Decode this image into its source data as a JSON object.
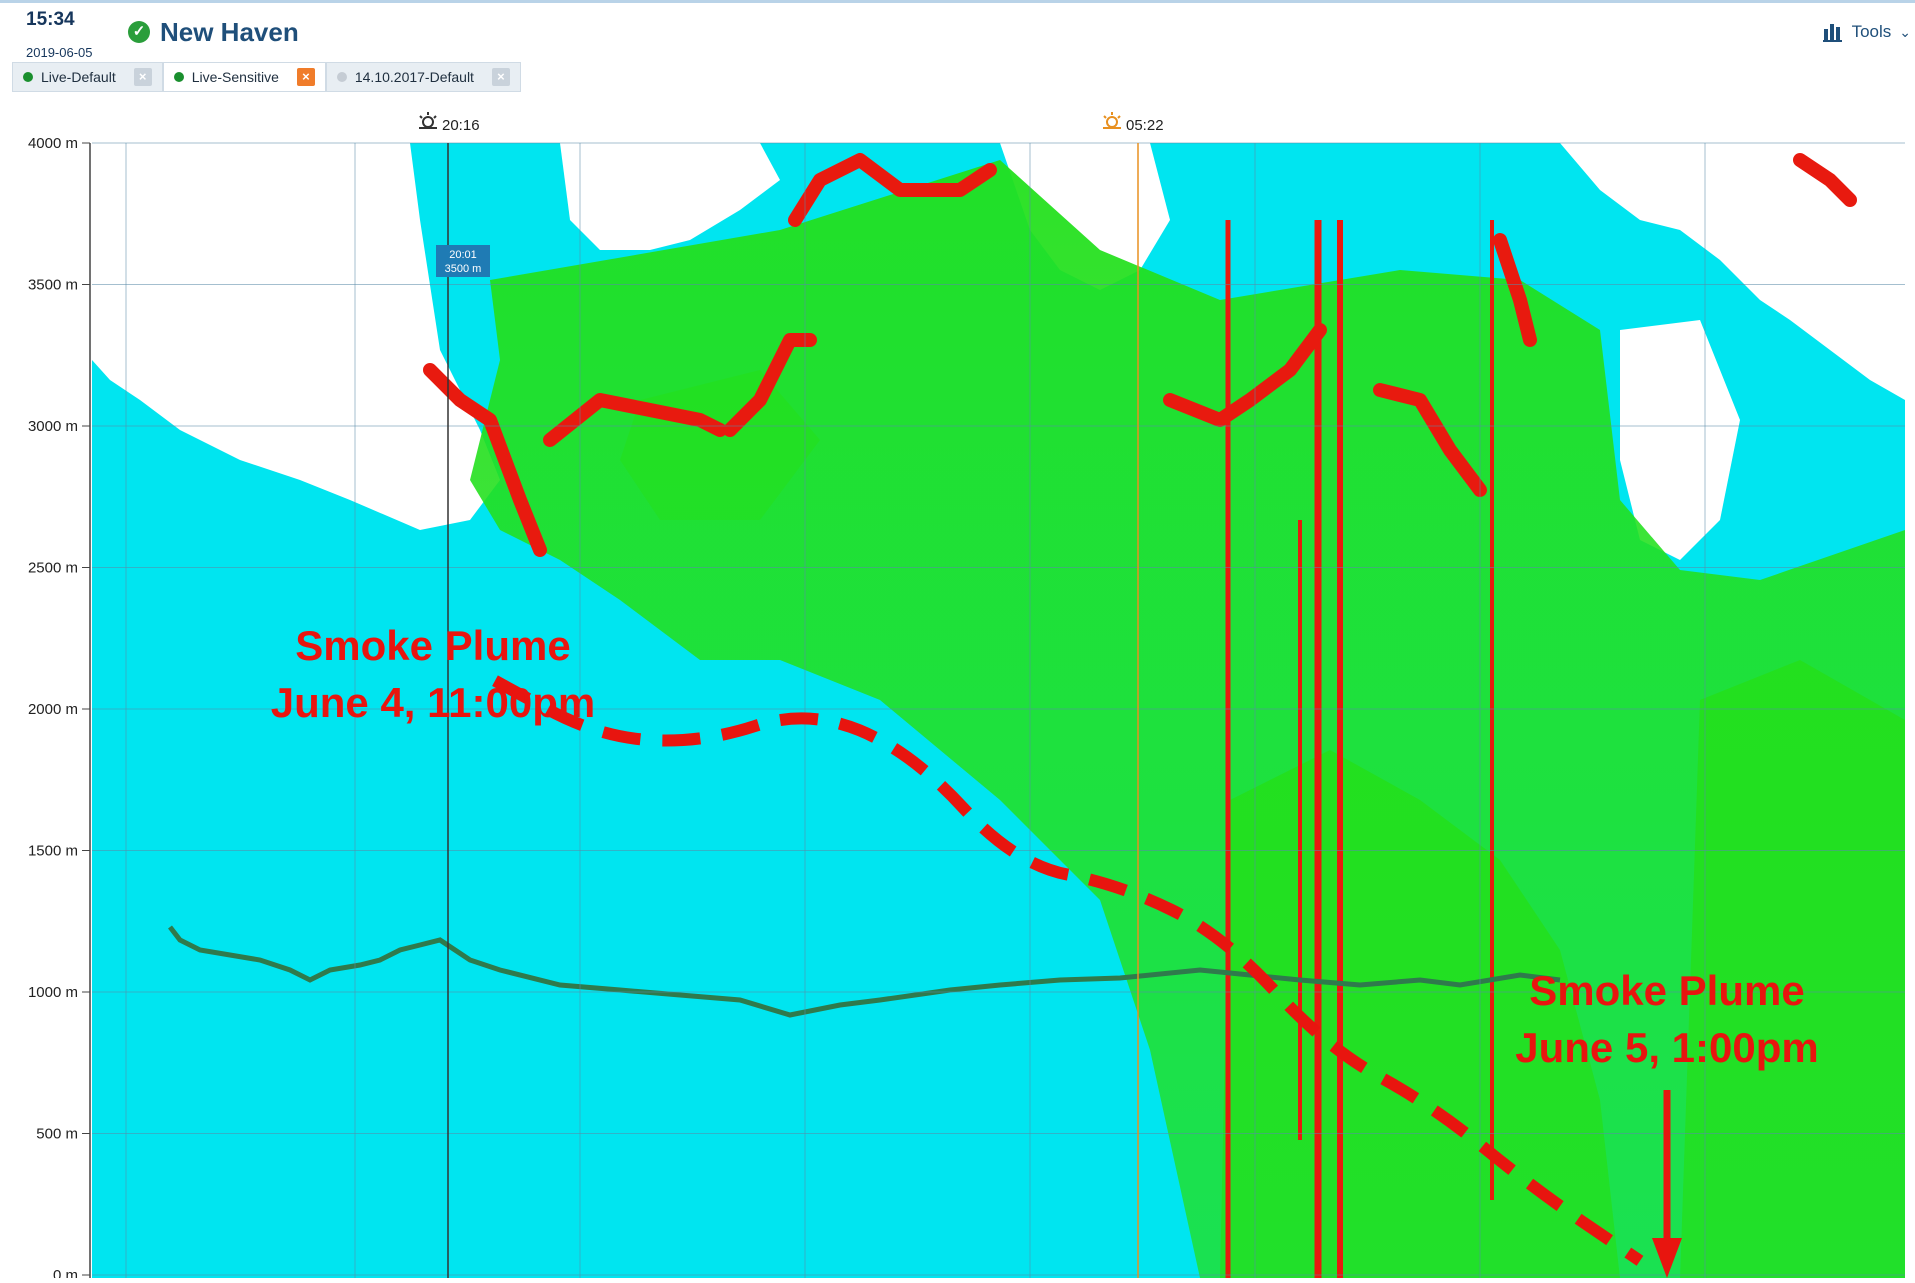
{
  "header": {
    "time": "15:34",
    "date": "2019-06-05",
    "site_name": "New Haven",
    "tools_label": "Tools",
    "status_icon": "check-circle-icon",
    "tools_icon": "bar-chart-icon",
    "tools_chevron": "chevron-down-icon"
  },
  "tabs": [
    {
      "label": "Live-Default",
      "dot_color": "#1a8f2e",
      "close_style": "grey"
    },
    {
      "label": "Live-Sensitive",
      "dot_color": "#1a8f2e",
      "close_style": "orange"
    },
    {
      "label": "14.10.2017-Default",
      "dot_color": "#c5ccd4",
      "close_style": "grey"
    }
  ],
  "markers": {
    "sunset_time": "20:16",
    "sunrise_time": "05:22",
    "cursor_time": "20:01",
    "cursor_height": "3500 m"
  },
  "annotations": {
    "plume1_line1": "Smoke Plume",
    "plume1_line2": "June 4, 11:00pm",
    "plume2_line1": "Smoke Plume",
    "plume2_line2": "June 5, 1:00pm"
  },
  "colors": {
    "accent_blue": "#1f4f7a",
    "background_cyan": "#00e5f0",
    "aerosol_green": "#23e01d",
    "cloud_red": "#e81a0f",
    "annotation_red": "#e8150f"
  },
  "chart_data": {
    "type": "heatmap",
    "title": "",
    "ylabel": "",
    "ylim": [
      0,
      4000
    ],
    "y_ticks": [
      "0 m",
      "500 m",
      "1000 m",
      "1500 m",
      "2000 m",
      "2500 m",
      "3000 m",
      "3500 m",
      "4000 m"
    ],
    "grid": true,
    "plume_path_heights_m": [
      2100,
      1900,
      1880,
      2000,
      1850,
      1450,
      1380,
      1200,
      800,
      600,
      300,
      50
    ]
  }
}
